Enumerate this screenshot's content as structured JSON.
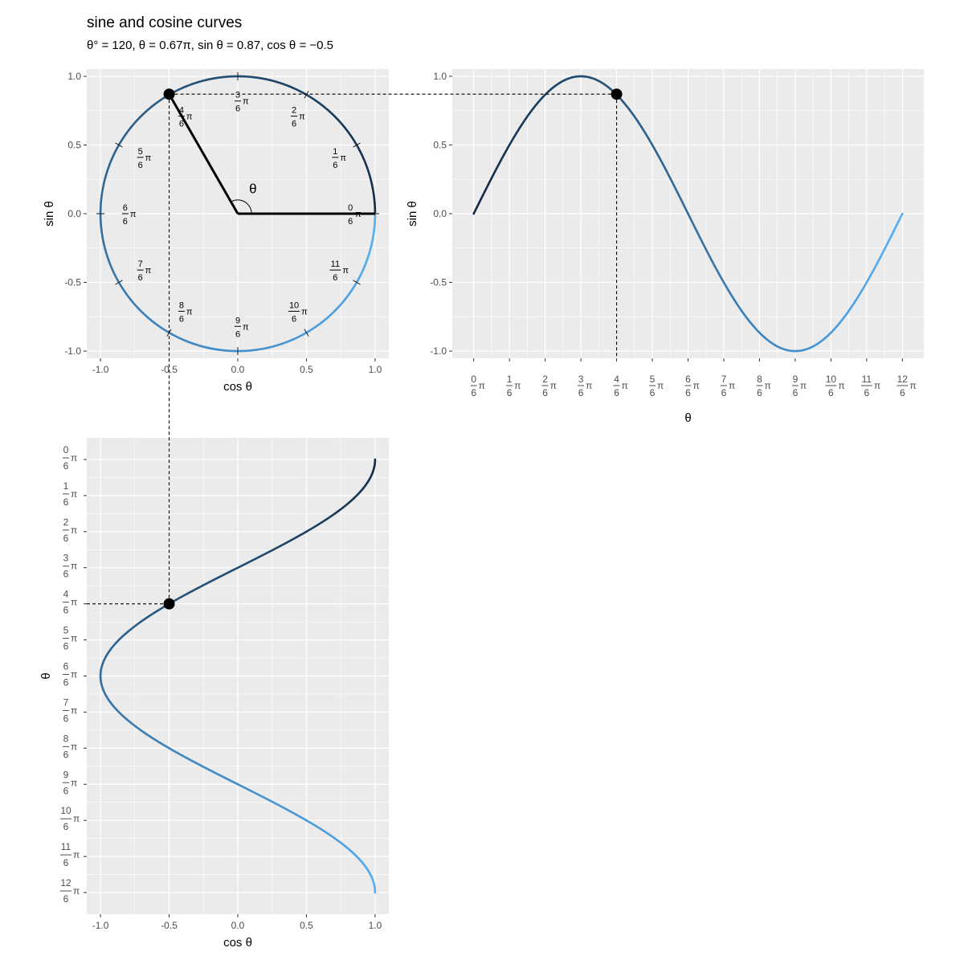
{
  "header": {
    "title": "sine and cosine curves",
    "subtitle": "θ° = 120, θ = 0.67π, sin θ = 0.87, cos θ = −0.5"
  },
  "colors": {
    "panel_background": "#ebebeb",
    "grid_major": "#ffffff",
    "curve_start": "#132b43",
    "curve_end": "#56b1f7",
    "marker": "#000000"
  },
  "chart_data": [
    {
      "name": "unit-circle",
      "type": "line",
      "xlabel": "cos θ",
      "ylabel": "sin θ",
      "xlim": [
        -1.0,
        1.0
      ],
      "ylim": [
        -1.0,
        1.0
      ],
      "x_ticks": [
        "-1.0",
        "-0.5",
        "0.0",
        "0.5",
        "1.0"
      ],
      "y_ticks": [
        "-1.0",
        "-0.5",
        "0.0",
        "0.5",
        "1.0"
      ],
      "x_tick_values": [
        -1,
        -0.5,
        0,
        0.5,
        1
      ],
      "y_tick_values": [
        -1,
        -0.5,
        0,
        0.5,
        1
      ],
      "angle_label": "θ",
      "pi_symbol": "π",
      "angle_numerators": [
        "0",
        "1",
        "2",
        "3",
        "4",
        "5",
        "6",
        "7",
        "8",
        "9",
        "10",
        "11"
      ],
      "angle_denominator": "6",
      "current_point": {
        "theta_pi": 0.6667,
        "cos": -0.5,
        "sin": 0.87
      },
      "grid": true
    },
    {
      "name": "sine-curve",
      "type": "line",
      "xlabel": "θ",
      "ylabel": "sin θ",
      "xlim_pi": [
        0,
        2
      ],
      "ylim": [
        -1.0,
        1.0
      ],
      "x_tick_numerators": [
        "0",
        "1",
        "2",
        "3",
        "4",
        "5",
        "6",
        "7",
        "8",
        "9",
        "10",
        "11",
        "12"
      ],
      "x_tick_denominator": "6",
      "y_ticks": [
        "-1.0",
        "-0.5",
        "0.0",
        "0.5",
        "1.0"
      ],
      "y_tick_values": [
        -1,
        -0.5,
        0,
        0.5,
        1
      ],
      "function": "sin",
      "current_point": {
        "theta_pi": 0.6667,
        "value": 0.87
      },
      "grid": true
    },
    {
      "name": "cosine-curve",
      "type": "line",
      "xlabel": "cos θ",
      "ylabel": "θ",
      "xlim": [
        -1.0,
        1.0
      ],
      "ylim_pi": [
        0,
        2
      ],
      "x_ticks": [
        "-1.0",
        "-0.5",
        "0.0",
        "0.5",
        "1.0"
      ],
      "x_tick_values": [
        -1,
        -0.5,
        0,
        0.5,
        1
      ],
      "y_tick_numerators": [
        "0",
        "1",
        "2",
        "3",
        "4",
        "5",
        "6",
        "7",
        "8",
        "9",
        "10",
        "11",
        "12"
      ],
      "y_tick_denominator": "6",
      "function": "cos",
      "y_reversed": true,
      "current_point": {
        "theta_pi": 0.6667,
        "value": -0.5
      },
      "grid": true
    }
  ]
}
